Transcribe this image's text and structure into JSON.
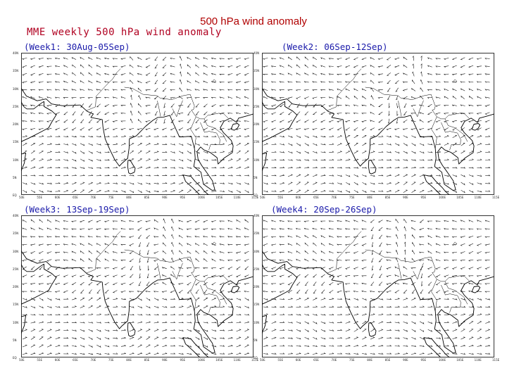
{
  "slide": {
    "title": "500 hPa  wind anomaly"
  },
  "figure": {
    "title": "MME weekly 500 hPa wind anomaly",
    "colors": {
      "title": "#b00020",
      "week_label": "#1a1aaa",
      "lines": "#000000"
    }
  },
  "panels": [
    {
      "label": "(Week1: 30Aug-05Sep)"
    },
    {
      "label": "(Week2: 06Sep-12Sep)"
    },
    {
      "label": "(Week3: 13Sep-19Sep)"
    },
    {
      "label": "(Week4: 20Sep-26Sep)"
    }
  ],
  "map": {
    "lon_range": [
      50,
      115
    ],
    "lat_range": [
      0,
      40
    ],
    "x_ticks": [
      "50E",
      "55E",
      "60E",
      "65E",
      "70E",
      "75E",
      "80E",
      "85E",
      "90E",
      "95E",
      "100E",
      "105E",
      "110E",
      "115E"
    ],
    "y_ticks": [
      "EQ",
      "5N",
      "10N",
      "15N",
      "20N",
      "25N",
      "30N",
      "35N",
      "40N"
    ]
  }
}
